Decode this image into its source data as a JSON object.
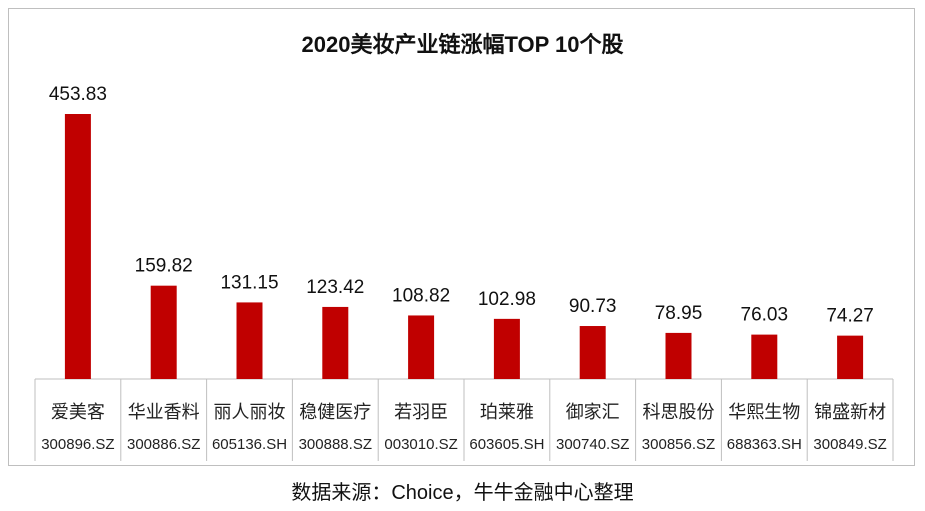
{
  "chart_data": {
    "type": "bar",
    "title": "2020美妆产业链涨幅TOP 10个股",
    "categories": [
      {
        "name": "爱美客",
        "code": "300896.SZ"
      },
      {
        "name": "华业香料",
        "code": "300886.SZ"
      },
      {
        "name": "丽人丽妆",
        "code": "605136.SH"
      },
      {
        "name": "稳健医疗",
        "code": "300888.SZ"
      },
      {
        "name": "若羽臣",
        "code": "003010.SZ"
      },
      {
        "name": "珀莱雅",
        "code": "603605.SH"
      },
      {
        "name": "御家汇",
        "code": "300740.SZ"
      },
      {
        "name": "科思股份",
        "code": "300856.SZ"
      },
      {
        "name": "华熙生物",
        "code": "688363.SH"
      },
      {
        "name": "锦盛新材",
        "code": "300849.SZ"
      }
    ],
    "values": [
      453.83,
      159.82,
      131.15,
      123.42,
      108.82,
      102.98,
      90.73,
      78.95,
      76.03,
      74.27
    ],
    "value_labels": [
      "453.83",
      "159.82",
      "131.15",
      "123.42",
      "108.82",
      "102.98",
      "90.73",
      "78.95",
      "76.03",
      "74.27"
    ],
    "bar_color": "#c00000",
    "grid": false,
    "legend": "none"
  },
  "source_note": "数据来源：Choice，牛牛金融中心整理"
}
